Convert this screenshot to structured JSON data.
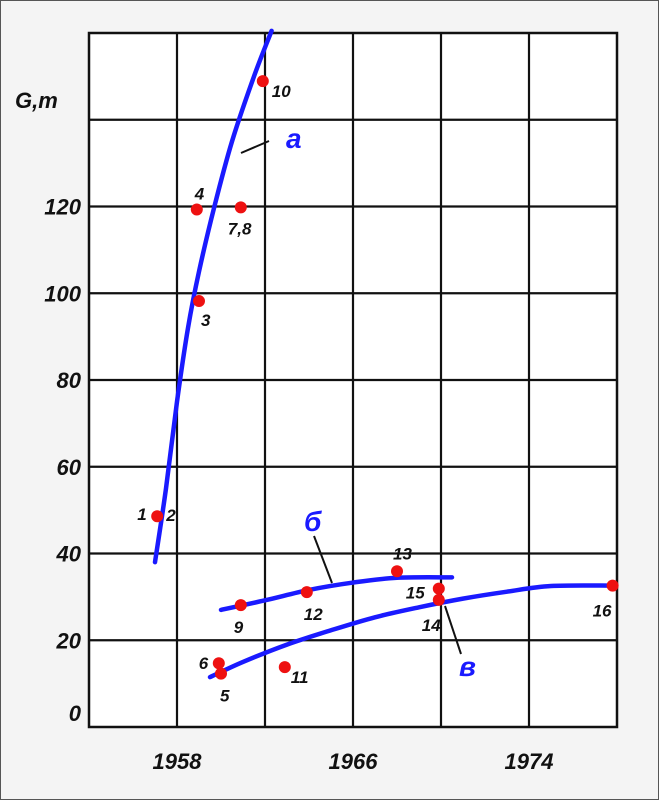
{
  "chart_data": {
    "type": "scatter",
    "ylabel": "G,m",
    "xlim": [
      1954,
      1978
    ],
    "ylim": [
      0,
      160
    ],
    "grid": true,
    "x_ticks": [
      {
        "value": 1958,
        "label": "1958"
      },
      {
        "value": 1966,
        "label": "1966"
      },
      {
        "value": 1974,
        "label": "1974"
      }
    ],
    "y_ticks": [
      {
        "value": 0,
        "label": "0"
      },
      {
        "value": 20,
        "label": "20"
      },
      {
        "value": 40,
        "label": "40"
      },
      {
        "value": 60,
        "label": "60"
      },
      {
        "value": 80,
        "label": "80"
      },
      {
        "value": 100,
        "label": "100"
      },
      {
        "value": 120,
        "label": "120"
      }
    ],
    "points": [
      {
        "label": "1",
        "x": 1957.1,
        "y": 48.6
      },
      {
        "label": "3",
        "x": 1959.0,
        "y": 98.2
      },
      {
        "label": "4",
        "x": 1958.9,
        "y": 119.3
      },
      {
        "label": "7,8",
        "x": 1960.9,
        "y": 119.8
      },
      {
        "label": "10",
        "x": 1961.9,
        "y": 148.9
      },
      {
        "label": "9",
        "x": 1960.9,
        "y": 28.1
      },
      {
        "label": "12",
        "x": 1963.9,
        "y": 31.1
      },
      {
        "label": "13",
        "x": 1968.0,
        "y": 35.9
      },
      {
        "label": "15",
        "x": 1969.9,
        "y": 31.9
      },
      {
        "label": "14",
        "x": 1969.9,
        "y": 29.3
      },
      {
        "label": "16",
        "x": 1977.8,
        "y": 32.6
      },
      {
        "label": "6",
        "x": 1959.9,
        "y": 14.7
      },
      {
        "label": "5",
        "x": 1960.0,
        "y": 12.3
      },
      {
        "label": "11",
        "x": 1962.9,
        "y": 13.8
      }
    ],
    "extra_point_labels": [
      {
        "label": "2",
        "near": "1"
      }
    ],
    "curves": [
      {
        "name": "а",
        "color": "#1a1aff",
        "points": [
          [
            1957.0,
            38.0
          ],
          [
            1957.5,
            55.0
          ],
          [
            1958.0,
            75.0
          ],
          [
            1958.5,
            92.0
          ],
          [
            1959.0,
            105.0
          ],
          [
            1959.7,
            120.0
          ],
          [
            1960.5,
            135.0
          ],
          [
            1961.5,
            150.0
          ],
          [
            1962.3,
            160.5
          ]
        ]
      },
      {
        "name": "б",
        "color": "#1a1aff",
        "points": [
          [
            1960.0,
            27.0
          ],
          [
            1962.0,
            29.2
          ],
          [
            1964.0,
            31.6
          ],
          [
            1966.0,
            33.3
          ],
          [
            1968.0,
            34.4
          ],
          [
            1970.5,
            34.5
          ]
        ]
      },
      {
        "name": "в",
        "color": "#1a1aff",
        "points": [
          [
            1959.5,
            11.5
          ],
          [
            1961.0,
            15.0
          ],
          [
            1963.0,
            19.0
          ],
          [
            1965.0,
            22.3
          ],
          [
            1967.0,
            25.3
          ],
          [
            1969.0,
            27.6
          ],
          [
            1971.0,
            29.6
          ],
          [
            1973.0,
            31.2
          ],
          [
            1975.0,
            32.5
          ],
          [
            1977.8,
            32.6
          ]
        ]
      }
    ],
    "point_color": "#ee1111"
  }
}
